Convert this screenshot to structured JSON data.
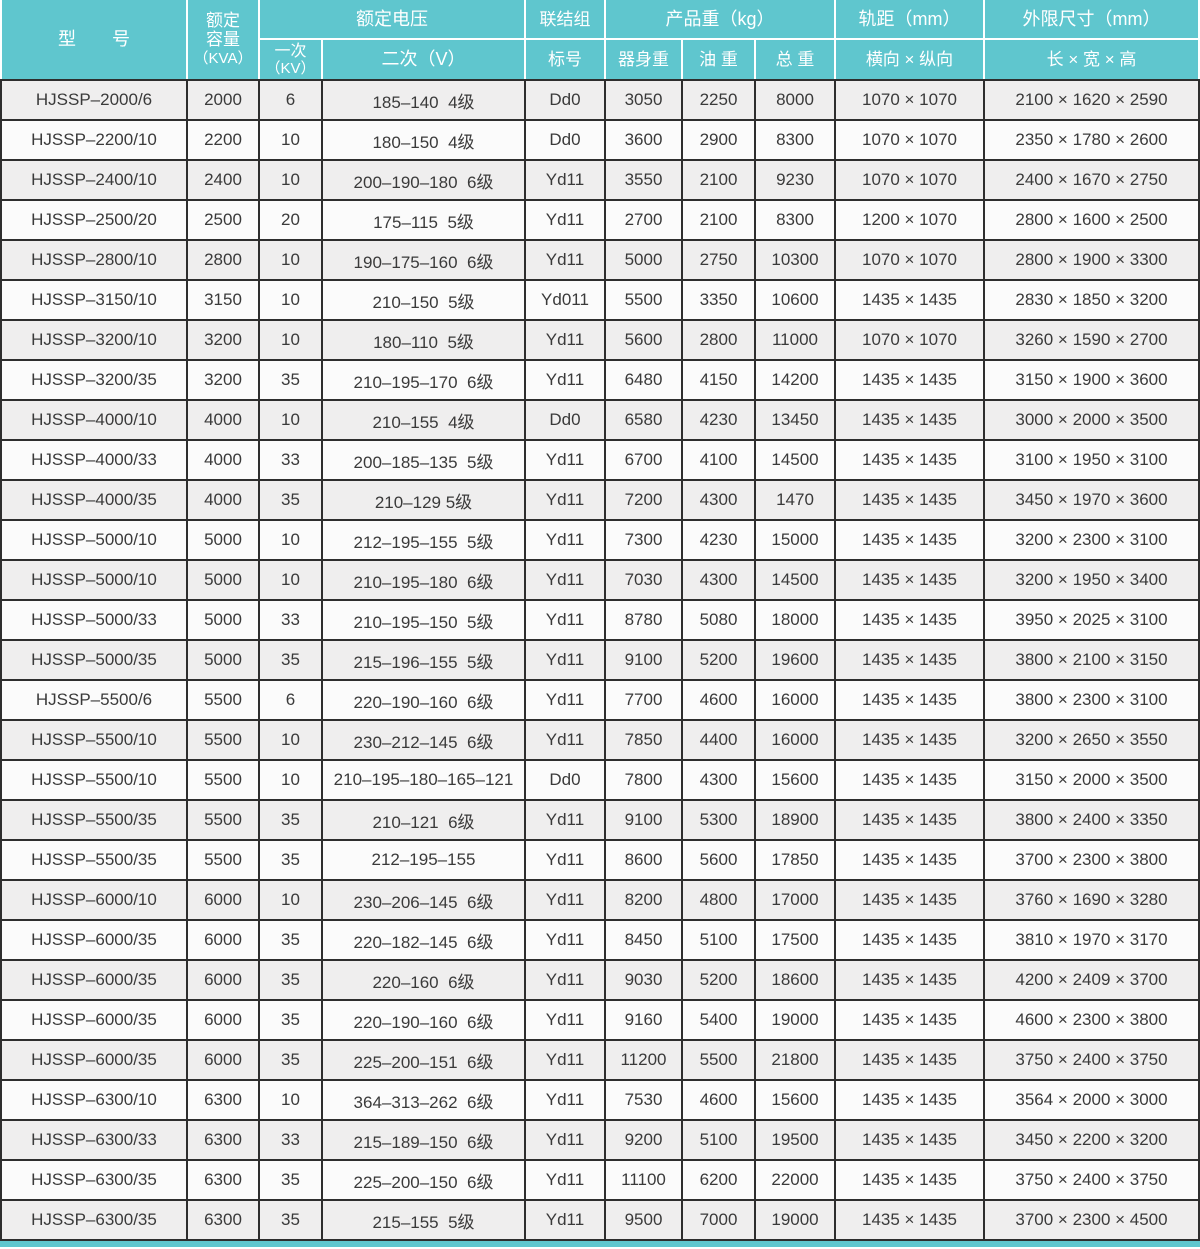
{
  "colors": {
    "accent_teal": "#5fc6ce",
    "grid_line": "#2e2e2e",
    "row_shaded": "#efeeee",
    "row_plain": "#fbfbfb",
    "header_text": "#ffffff"
  },
  "table": {
    "header": {
      "model": "型　　号",
      "capacity_l1": "额定",
      "capacity_l2": "容量",
      "capacity_l3": "（KVA）",
      "voltage": "额定电压",
      "primary_l1": "一次",
      "primary_l2": "（KV）",
      "secondary": "二次（V）",
      "group_l1": "联结组",
      "group_l2": "标号",
      "weight": "产品重（kg）",
      "body_weight": "器身重",
      "oil_weight": "油 重",
      "total_weight": "总 重",
      "gauge": "轨距（mm）",
      "gauge_sub": "横向 × 纵向",
      "dims": "外限尺寸（mm）",
      "dims_sub": "长 × 宽 × 高"
    },
    "rows": [
      [
        "HJSSP–2000/6",
        "2000",
        "6",
        "185–140  4级",
        "Dd0",
        "3050",
        "2250",
        "8000",
        "1070 × 1070",
        "2100 × 1620 × 2590"
      ],
      [
        "HJSSP–2200/10",
        "2200",
        "10",
        "180–150  4级",
        "Dd0",
        "3600",
        "2900",
        "8300",
        "1070 × 1070",
        "2350 × 1780 × 2600"
      ],
      [
        "HJSSP–2400/10",
        "2400",
        "10",
        "200–190–180  6级",
        "Yd11",
        "3550",
        "2100",
        "9230",
        "1070 × 1070",
        "2400 × 1670 × 2750"
      ],
      [
        "HJSSP–2500/20",
        "2500",
        "20",
        "175–115  5级",
        "Yd11",
        "2700",
        "2100",
        "8300",
        "1200 × 1070",
        "2800 × 1600 × 2500"
      ],
      [
        "HJSSP–2800/10",
        "2800",
        "10",
        "190–175–160  6级",
        "Yd11",
        "5000",
        "2750",
        "10300",
        "1070 × 1070",
        "2800 × 1900 × 3300"
      ],
      [
        "HJSSP–3150/10",
        "3150",
        "10",
        "210–150  5级",
        "Yd011",
        "5500",
        "3350",
        "10600",
        "1435 × 1435",
        "2830 × 1850 × 3200"
      ],
      [
        "HJSSP–3200/10",
        "3200",
        "10",
        "180–110  5级",
        "Yd11",
        "5600",
        "2800",
        "11000",
        "1070 × 1070",
        "3260 × 1590 × 2700"
      ],
      [
        "HJSSP–3200/35",
        "3200",
        "35",
        "210–195–170  6级",
        "Yd11",
        "6480",
        "4150",
        "14200",
        "1435 × 1435",
        "3150 × 1900 × 3600"
      ],
      [
        "HJSSP–4000/10",
        "4000",
        "10",
        "210–155  4级",
        "Dd0",
        "6580",
        "4230",
        "13450",
        "1435 × 1435",
        "3000 × 2000 × 3500"
      ],
      [
        "HJSSP–4000/33",
        "4000",
        "33",
        "200–185–135  5级",
        "Yd11",
        "6700",
        "4100",
        "14500",
        "1435 × 1435",
        "3100 × 1950 × 3100"
      ],
      [
        "HJSSP–4000/35",
        "4000",
        "35",
        "210–129 5级",
        "Yd11",
        "7200",
        "4300",
        "1470",
        "1435 × 1435",
        "3450 × 1970 × 3600"
      ],
      [
        "HJSSP–5000/10",
        "5000",
        "10",
        "212–195–155  5级",
        "Yd11",
        "7300",
        "4230",
        "15000",
        "1435 × 1435",
        "3200 × 2300 × 3100"
      ],
      [
        "HJSSP–5000/10",
        "5000",
        "10",
        "210–195–180  6级",
        "Yd11",
        "7030",
        "4300",
        "14500",
        "1435 × 1435",
        "3200 × 1950 × 3400"
      ],
      [
        "HJSSP–5000/33",
        "5000",
        "33",
        "210–195–150  5级",
        "Yd11",
        "8780",
        "5080",
        "18000",
        "1435 × 1435",
        "3950 × 2025 × 3100"
      ],
      [
        "HJSSP–5000/35",
        "5000",
        "35",
        "215–196–155  5级",
        "Yd11",
        "9100",
        "5200",
        "19600",
        "1435 × 1435",
        "3800 × 2100 × 3150"
      ],
      [
        "HJSSP–5500/6",
        "5500",
        "6",
        "220–190–160  6级",
        "Yd11",
        "7700",
        "4600",
        "16000",
        "1435 × 1435",
        "3800 × 2300 × 3100"
      ],
      [
        "HJSSP–5500/10",
        "5500",
        "10",
        "230–212–145  6级",
        "Yd11",
        "7850",
        "4400",
        "16000",
        "1435 × 1435",
        "3200 × 2650 × 3550"
      ],
      [
        "HJSSP–5500/10",
        "5500",
        "10",
        "210–195–180–165–121",
        "Dd0",
        "7800",
        "4300",
        "15600",
        "1435 × 1435",
        "3150 × 2000 × 3500"
      ],
      [
        "HJSSP–5500/35",
        "5500",
        "35",
        "210–121  6级",
        "Yd11",
        "9100",
        "5300",
        "18900",
        "1435 × 1435",
        "3800 × 2400 × 3350"
      ],
      [
        "HJSSP–5500/35",
        "5500",
        "35",
        "212–195–155",
        "Yd11",
        "8600",
        "5600",
        "17850",
        "1435 × 1435",
        "3700 × 2300 × 3800"
      ],
      [
        "HJSSP–6000/10",
        "6000",
        "10",
        "230–206–145  6级",
        "Yd11",
        "8200",
        "4800",
        "17000",
        "1435 × 1435",
        "3760 × 1690 × 3280"
      ],
      [
        "HJSSP–6000/35",
        "6000",
        "35",
        "220–182–145  6级",
        "Yd11",
        "8450",
        "5100",
        "17500",
        "1435 × 1435",
        "3810 × 1970 × 3170"
      ],
      [
        "HJSSP–6000/35",
        "6000",
        "35",
        "220–160  6级",
        "Yd11",
        "9030",
        "5200",
        "18600",
        "1435 × 1435",
        "4200 × 2409 × 3700"
      ],
      [
        "HJSSP–6000/35",
        "6000",
        "35",
        "220–190–160  6级",
        "Yd11",
        "9160",
        "5400",
        "19000",
        "1435 × 1435",
        "4600 × 2300 × 3800"
      ],
      [
        "HJSSP–6000/35",
        "6000",
        "35",
        "225–200–151  6级",
        "Yd11",
        "11200",
        "5500",
        "21800",
        "1435 × 1435",
        "3750 × 2400 × 3750"
      ],
      [
        "HJSSP–6300/10",
        "6300",
        "10",
        "364–313–262  6级",
        "Yd11",
        "7530",
        "4600",
        "15600",
        "1435 × 1435",
        "3564 × 2000 × 3000"
      ],
      [
        "HJSSP–6300/33",
        "6300",
        "33",
        "215–189–150  6级",
        "Yd11",
        "9200",
        "5100",
        "19500",
        "1435 × 1435",
        "3450 × 2200 × 3200"
      ],
      [
        "HJSSP–6300/35",
        "6300",
        "35",
        "225–200–150  6级",
        "Yd11",
        "11100",
        "6200",
        "22000",
        "1435 × 1435",
        "3750 × 2400 × 3750"
      ],
      [
        "HJSSP–6300/35",
        "6300",
        "35",
        "215–155  5级",
        "Yd11",
        "9500",
        "7000",
        "19000",
        "1435 × 1435",
        "3700 × 2300 × 4500"
      ]
    ]
  }
}
